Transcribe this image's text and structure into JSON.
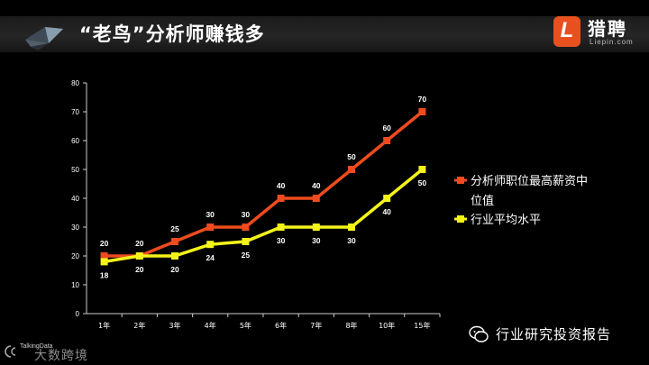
{
  "header": {
    "title": "“老鸟”分析师赚钱多"
  },
  "brand": {
    "mark": "L",
    "name": "猎聘",
    "domain": "Liepin.com",
    "color": "#e8511f"
  },
  "watermarks": {
    "right_text": "行业研究投资报告",
    "left_small": "TalkingData",
    "left_big": "大数跨境"
  },
  "colors": {
    "series_max": "#ee4b1e",
    "series_avg": "#f4f41a",
    "axis": "#cccccc",
    "background": "#000000"
  },
  "chart_data": {
    "type": "line",
    "categories": [
      "1年",
      "2年",
      "3年",
      "4年",
      "5年",
      "6年",
      "7年",
      "8年",
      "10年",
      "15年"
    ],
    "ylim": [
      0,
      80
    ],
    "yticks": [
      0,
      10,
      20,
      30,
      40,
      50,
      60,
      70,
      80
    ],
    "grid": false,
    "legend_position": "right",
    "series": [
      {
        "name_lines": [
          "分析师职位最高薪资中",
          "位值"
        ],
        "values": [
          20,
          20,
          25,
          30,
          30,
          40,
          40,
          50,
          60,
          70
        ],
        "color": "#ee4b1e",
        "label_position": "above"
      },
      {
        "name_lines": [
          "行业平均水平"
        ],
        "values": [
          18,
          20,
          20,
          24,
          25,
          30,
          30,
          30,
          40,
          50
        ],
        "color": "#f4f41a",
        "label_position": "below"
      }
    ]
  }
}
